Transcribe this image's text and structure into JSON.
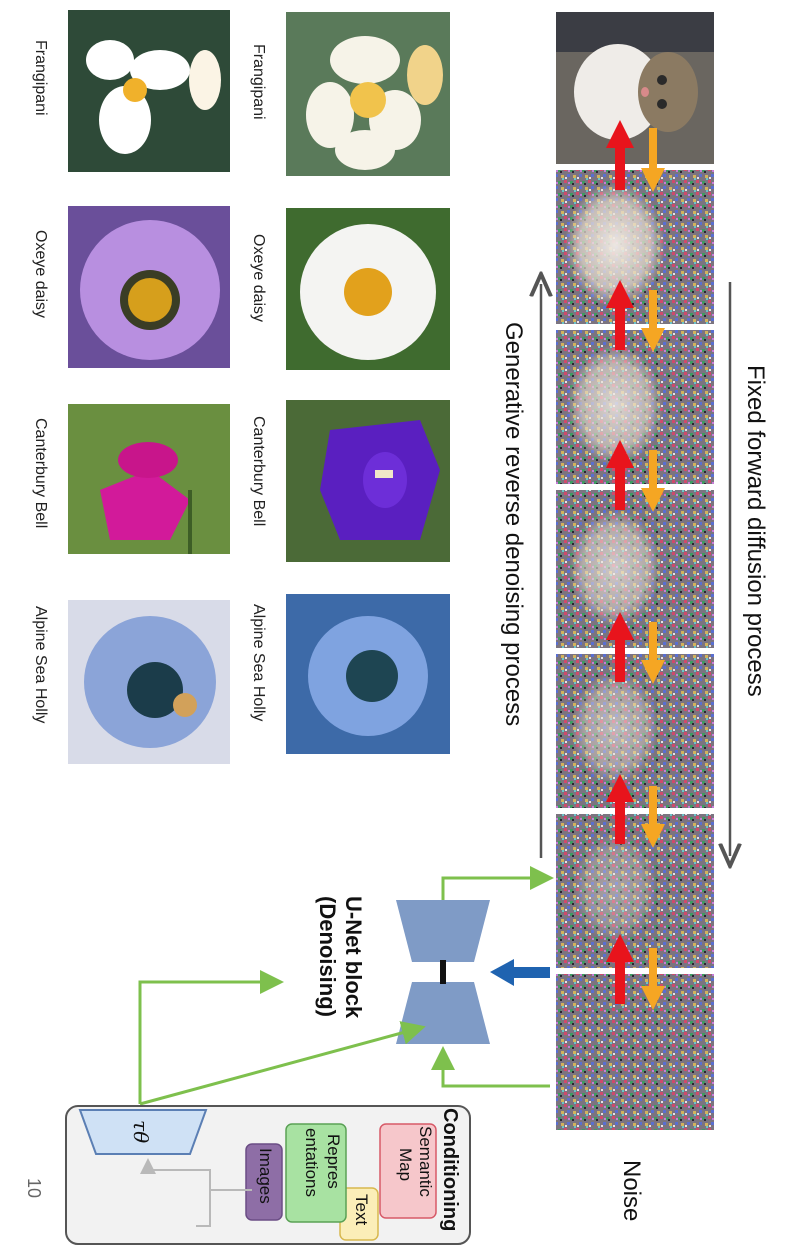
{
  "top_label": "Noise",
  "forward_label": "Fixed forward diffusion process",
  "reverse_label": "Generative reverse denoising process",
  "unet": {
    "title": "U-Net block",
    "subtitle": "(Denoising)"
  },
  "conditioning": {
    "title": "Conditioning",
    "semantic_map": [
      "Semantic",
      "Map"
    ],
    "text": "Text",
    "representations": [
      "Repres",
      "entations"
    ],
    "images": "Images",
    "encoder_symbol": "τθ"
  },
  "page_number": "10",
  "flowers": {
    "right_column": [
      "Frangipani",
      "Oxeye daisy",
      "Canterbury Bell",
      "Alpine Sea Holly"
    ],
    "left_column": [
      "Frangipani",
      "Oxeye daisy",
      "Canterbury Bell",
      "Alpine Sea Holly"
    ]
  },
  "colors": {
    "forward_arrow": "#f5a623",
    "reverse_arrow": "#e8141c",
    "unet_fill": "#7f9bc6",
    "blue_arrow": "#1f63b0",
    "green_line": "#7ec04d",
    "semantic_fill": "#f6c7cb",
    "text_fill": "#fbeeb8",
    "repr_fill": "#a8e2a2",
    "images_fill": "#8e6ea6",
    "encoder_fill": "#cfe1f5"
  }
}
